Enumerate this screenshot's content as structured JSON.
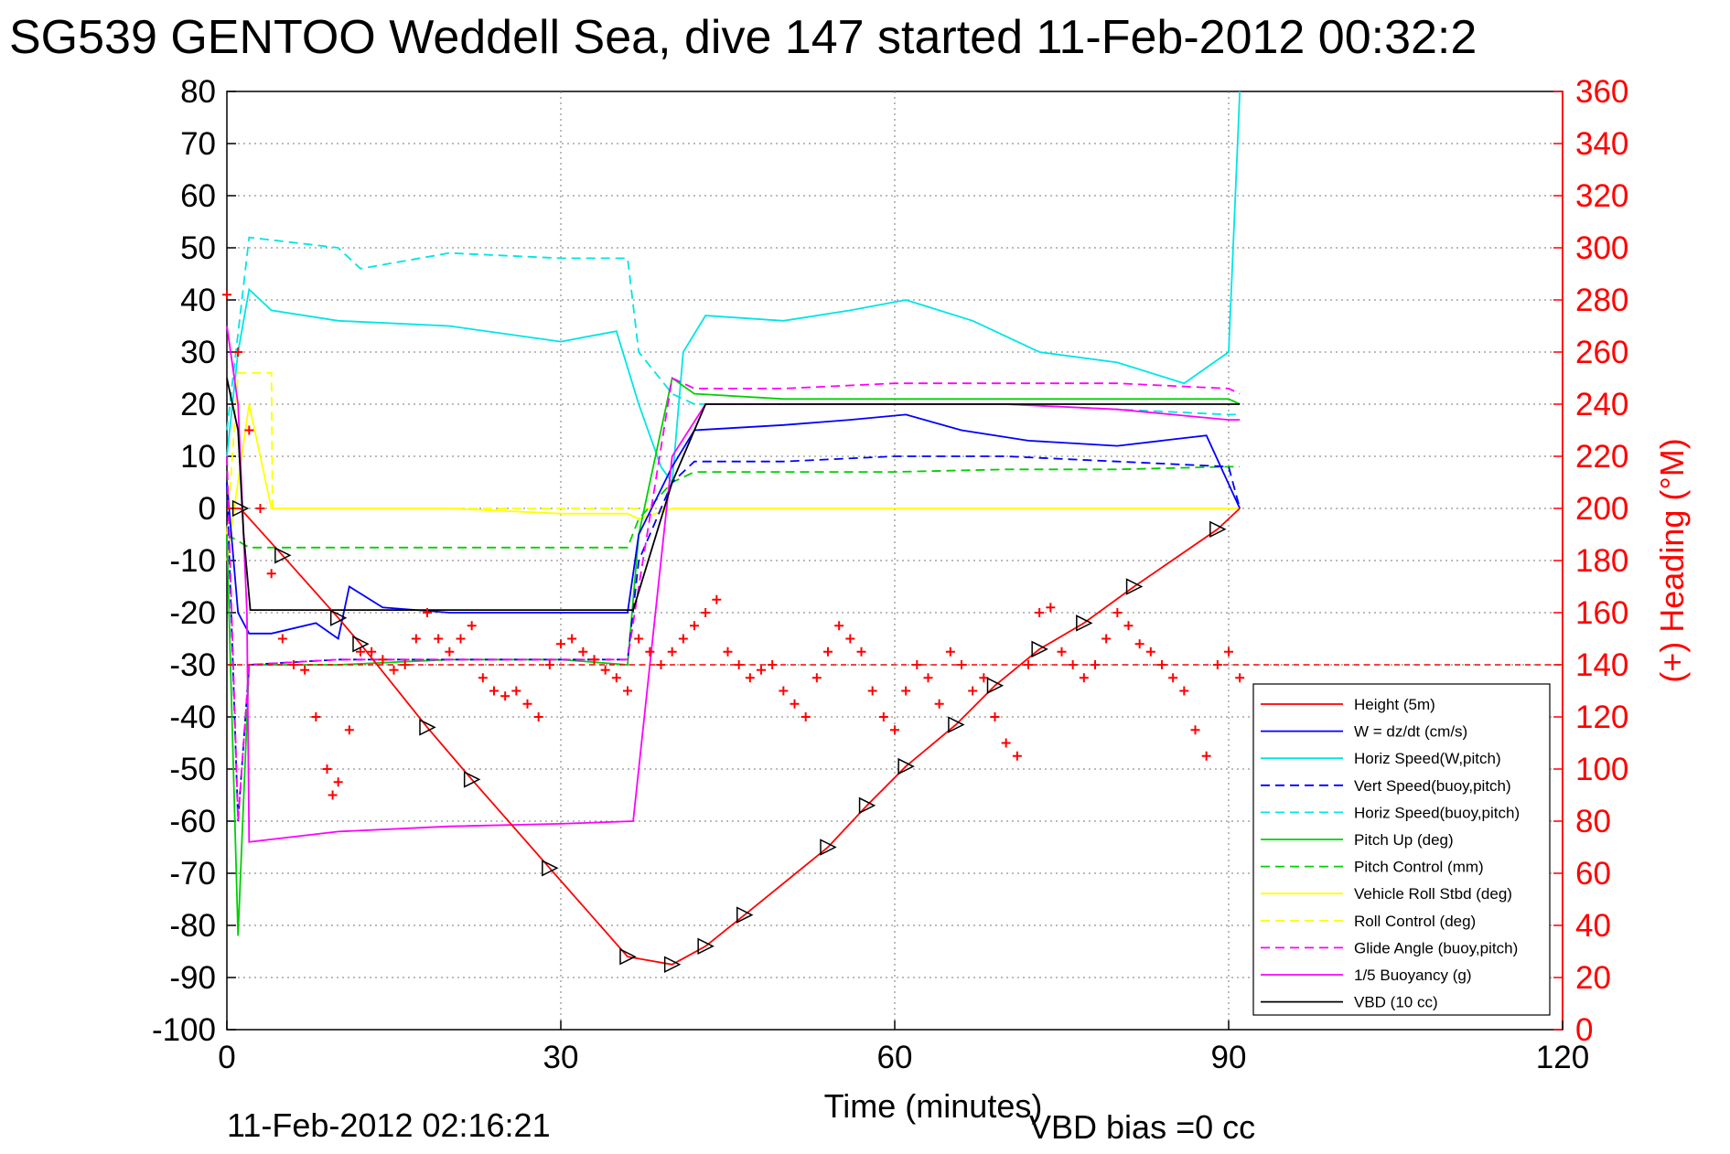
{
  "title": "SG539 GENTOO Weddell Sea, dive 147 started 11-Feb-2012 00:32:2",
  "footer": {
    "timestamp": "11-Feb-2012 02:16:21",
    "vbd_bias": "VBD bias =0 cc"
  },
  "chart_data": {
    "type": "line",
    "xlabel": "Time (minutes)",
    "ylabel": "",
    "ylabel_right": "(+) Heading (°M)",
    "xlim": [
      0,
      120
    ],
    "ylim": [
      -100,
      80
    ],
    "ylim_right": [
      0,
      360
    ],
    "xticks": [
      "0",
      "30",
      "60",
      "90",
      "120"
    ],
    "yticks": [
      "80",
      "70",
      "60",
      "50",
      "40",
      "30",
      "20",
      "10",
      "0",
      "-10",
      "-20",
      "-30",
      "-40",
      "-50",
      "-60",
      "-70",
      "-80",
      "-90",
      "-100"
    ],
    "yticks_right": [
      "360",
      "340",
      "320",
      "300",
      "280",
      "260",
      "240",
      "220",
      "200",
      "180",
      "160",
      "140",
      "120",
      "100",
      "80",
      "60",
      "40",
      "20",
      "0"
    ],
    "grid": true,
    "legend_position": "bottom-right",
    "series": [
      {
        "name": "Height (5m)",
        "color": "#ff0000",
        "style": "solid",
        "x": [
          0,
          1.2,
          5,
          10,
          12,
          18,
          22,
          29,
          36,
          40,
          43,
          46.5,
          54,
          57.5,
          61,
          65.5,
          69,
          73,
          77,
          81.5,
          89,
          91
        ],
        "y": [
          0,
          0,
          -9,
          -21,
          -26,
          -42,
          -52,
          -69,
          -86,
          -87.5,
          -84,
          -78,
          -65,
          -57,
          -49.5,
          -41.5,
          -34,
          -27,
          -22,
          -15,
          -4,
          0
        ]
      },
      {
        "name": "W = dz/dt (cm/s)",
        "color": "#0000ff",
        "style": "solid",
        "x": [
          0,
          1,
          2,
          4,
          8,
          10,
          11,
          14,
          20,
          28,
          36,
          37,
          40,
          42,
          50,
          56,
          61,
          66,
          72,
          80,
          88,
          91
        ],
        "y": [
          5,
          -20,
          -24,
          -24,
          -22,
          -25,
          -15,
          -19,
          -20,
          -20,
          -20,
          -5,
          8,
          15,
          16,
          17,
          18,
          15,
          13,
          12,
          14,
          0
        ]
      },
      {
        "name": "Horiz Speed(W,pitch)",
        "color": "#00e5e5",
        "style": "solid",
        "x": [
          0,
          1,
          2,
          4,
          10,
          20,
          30,
          35,
          37,
          39,
          40,
          41,
          43,
          50,
          56,
          61,
          67,
          73,
          80,
          86,
          90,
          91
        ],
        "y": [
          10,
          30,
          42,
          38,
          36,
          35,
          32,
          34,
          20,
          8,
          5,
          30,
          37,
          36,
          38,
          40,
          36,
          30,
          28,
          24,
          30,
          80
        ]
      },
      {
        "name": "Vert Speed(buoy,pitch)",
        "color": "#0000ff",
        "style": "dashed",
        "x": [
          0,
          1,
          2,
          10,
          20,
          30,
          36,
          37,
          40,
          42,
          50,
          60,
          70,
          80,
          90,
          91
        ],
        "y": [
          5,
          -60,
          -30,
          -29,
          -29,
          -29,
          -29,
          -10,
          5,
          9,
          9,
          10,
          10,
          9,
          8,
          0
        ]
      },
      {
        "name": "Horiz Speed(buoy,pitch)",
        "color": "#00e5e5",
        "style": "dashed",
        "x": [
          0,
          2,
          10,
          12,
          20,
          30,
          36,
          37,
          40,
          42,
          50,
          60,
          70,
          80,
          90,
          91
        ],
        "y": [
          15,
          52,
          50,
          46,
          49,
          48,
          48,
          30,
          22,
          20,
          20,
          20,
          20,
          19,
          18,
          18
        ]
      },
      {
        "name": "Pitch Up (deg)",
        "color": "#00d000",
        "style": "solid",
        "x": [
          0,
          1,
          2,
          10,
          20,
          30,
          36,
          37,
          40,
          42,
          50,
          60,
          70,
          80,
          90,
          91
        ],
        "y": [
          -5,
          -82,
          -30,
          -30,
          -29,
          -29,
          -30,
          -5,
          25,
          22,
          21,
          21,
          21,
          21,
          21,
          20
        ]
      },
      {
        "name": "Pitch Control (mm)",
        "color": "#00d000",
        "style": "dashed",
        "x": [
          0,
          2,
          10,
          20,
          30,
          36,
          37,
          40,
          42,
          50,
          60,
          70,
          80,
          90,
          91
        ],
        "y": [
          -5,
          -7.5,
          -7.5,
          -7.5,
          -7.5,
          -7.5,
          -2,
          5,
          7,
          7,
          7,
          7.5,
          7.5,
          8,
          8
        ]
      },
      {
        "name": "Vehicle Roll Stbd (deg)",
        "color": "#ffff00",
        "style": "solid",
        "x": [
          0,
          2,
          4,
          10,
          20,
          30,
          36,
          37,
          40,
          50,
          60,
          70,
          80,
          90,
          91
        ],
        "y": [
          -10,
          20,
          0,
          0,
          0,
          -1,
          -1,
          -2,
          0,
          0,
          0,
          0,
          0,
          0,
          0
        ]
      },
      {
        "name": "Roll Control (deg)",
        "color": "#ffff00",
        "style": "dashed",
        "x": [
          0,
          1,
          4,
          4.1,
          10,
          20,
          30,
          36,
          40,
          50,
          60,
          70,
          80,
          90,
          91
        ],
        "y": [
          -5,
          26,
          26,
          0,
          0,
          0,
          0,
          0,
          0,
          0,
          0,
          0,
          0,
          0,
          0
        ]
      },
      {
        "name": "Glide Angle (buoy,pitch)",
        "color": "#ff00ff",
        "style": "dashed",
        "x": [
          0,
          1,
          2,
          10,
          20,
          30,
          36,
          37,
          40,
          42,
          50,
          60,
          70,
          80,
          90,
          91
        ],
        "y": [
          10,
          -60,
          -30,
          -29,
          -29,
          -29,
          -29,
          -15,
          25,
          23,
          23,
          24,
          24,
          24,
          23,
          22
        ]
      },
      {
        "name": "1/5 Buoyancy (g)",
        "color": "#ff00ff",
        "style": "solid",
        "x": [
          0,
          1,
          1.8,
          2,
          10,
          20,
          30,
          36.5,
          40,
          43,
          60,
          70,
          80,
          90,
          91
        ],
        "y": [
          35,
          20,
          -20,
          -64,
          -62,
          -61,
          -60.5,
          -60,
          10,
          20,
          20,
          20,
          19,
          17,
          17
        ]
      },
      {
        "name": "VBD (10 cc)",
        "color": "#000000",
        "style": "solid",
        "x": [
          0,
          1,
          1.5,
          2.1,
          10,
          20,
          30,
          36.5,
          40,
          43,
          60,
          70,
          80,
          90,
          91
        ],
        "y": [
          25,
          15,
          -5,
          -19.5,
          -19.5,
          -19.5,
          -19.5,
          -19.5,
          5,
          20,
          20,
          20,
          20,
          20,
          20
        ]
      }
    ],
    "heading": {
      "name": "(+) Heading",
      "color": "#ff0000",
      "marker": "+",
      "reference_heading": 140,
      "x": [
        0,
        1,
        2,
        3,
        4,
        5,
        6,
        7,
        8,
        9,
        9.5,
        10,
        11,
        12,
        13,
        14,
        15,
        16,
        17,
        18,
        19,
        20,
        21,
        22,
        23,
        24,
        25,
        26,
        27,
        28,
        29,
        30,
        31,
        32,
        33,
        34,
        35,
        36,
        37,
        38,
        39,
        40,
        41,
        42,
        43,
        44,
        45,
        46,
        47,
        48,
        49,
        50,
        51,
        52,
        53,
        54,
        55,
        56,
        57,
        58,
        59,
        60,
        61,
        62,
        63,
        64,
        65,
        66,
        67,
        68,
        69,
        70,
        71,
        72,
        73,
        74,
        75,
        76,
        77,
        78,
        79,
        80,
        81,
        82,
        83,
        84,
        85,
        86,
        87,
        88,
        89,
        90,
        91
      ],
      "y": [
        282,
        260,
        230,
        200,
        175,
        150,
        140,
        138,
        120,
        100,
        90,
        95,
        115,
        145,
        145,
        142,
        138,
        140,
        150,
        160,
        150,
        145,
        150,
        155,
        135,
        130,
        128,
        130,
        125,
        120,
        140,
        148,
        150,
        145,
        142,
        138,
        135,
        130,
        150,
        145,
        140,
        145,
        150,
        155,
        160,
        165,
        145,
        140,
        135,
        138,
        140,
        130,
        125,
        120,
        135,
        145,
        155,
        150,
        145,
        130,
        120,
        115,
        130,
        140,
        135,
        125,
        145,
        140,
        130,
        135,
        120,
        110,
        105,
        140,
        160,
        162,
        145,
        140,
        135,
        140,
        150,
        160,
        155,
        148,
        145,
        140,
        135,
        130,
        115,
        105,
        140,
        145,
        135
      ]
    }
  }
}
